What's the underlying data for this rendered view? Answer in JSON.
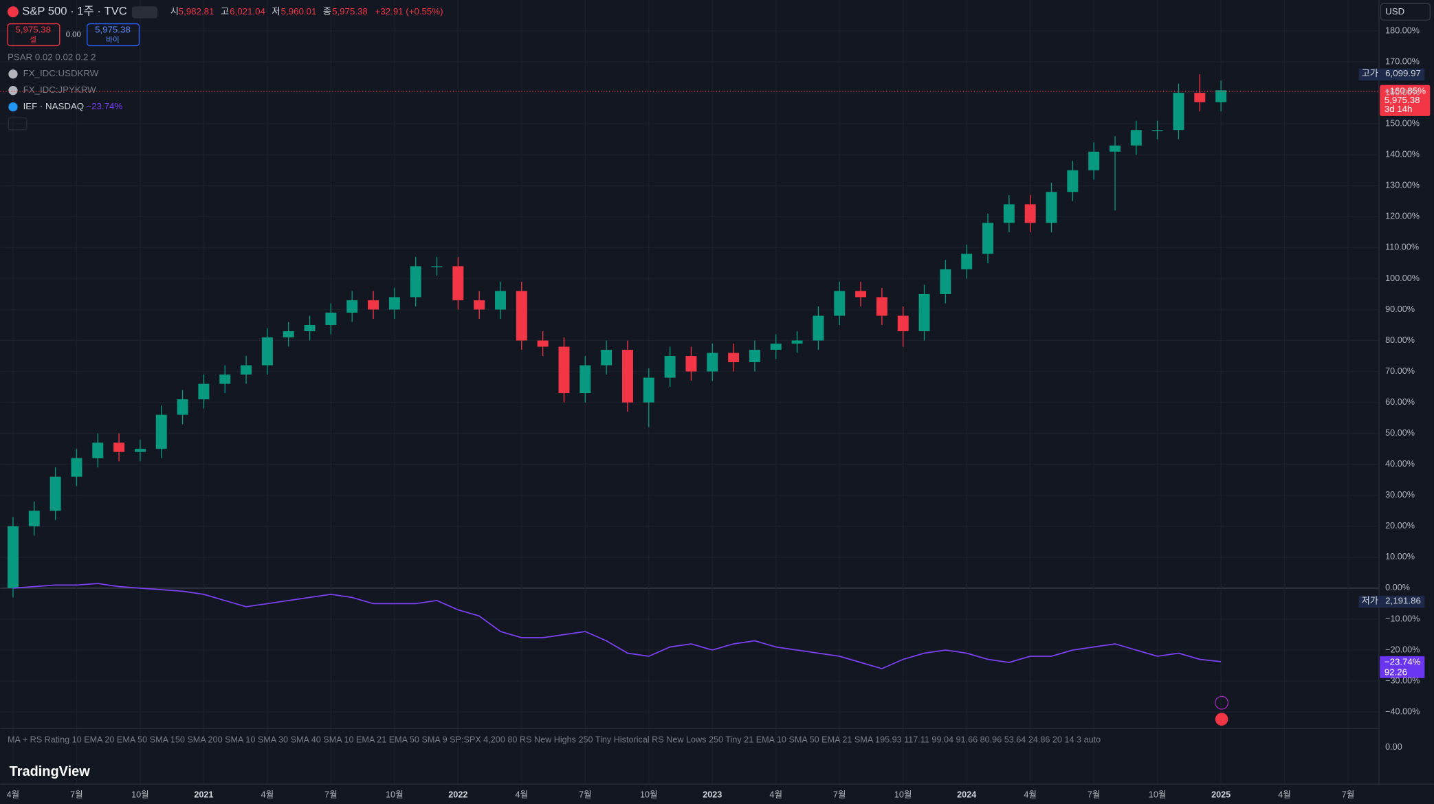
{
  "chart_data": {
    "type": "candlestick",
    "title": "S&P 500 · 1주 · TVC",
    "x": [
      "2020-04",
      "2020-05",
      "2020-06",
      "2020-07",
      "2020-08",
      "2020-09",
      "2020-10",
      "2020-11",
      "2020-12",
      "2021-01",
      "2021-02",
      "2021-03",
      "2021-04",
      "2021-05",
      "2021-06",
      "2021-07",
      "2021-08",
      "2021-09",
      "2021-10",
      "2021-11",
      "2021-12",
      "2022-01",
      "2022-02",
      "2022-03",
      "2022-04",
      "2022-05",
      "2022-06",
      "2022-07",
      "2022-08",
      "2022-09",
      "2022-10",
      "2022-11",
      "2022-12",
      "2023-01",
      "2023-02",
      "2023-03",
      "2023-04",
      "2023-05",
      "2023-06",
      "2023-07",
      "2023-08",
      "2023-09",
      "2023-10",
      "2023-11",
      "2023-12",
      "2024-01",
      "2024-02",
      "2024-03",
      "2024-04",
      "2024-05",
      "2024-06",
      "2024-07",
      "2024-08",
      "2024-09",
      "2024-10",
      "2024-11",
      "2024-12",
      "2025-01"
    ],
    "open": [
      0,
      20,
      25,
      36,
      42,
      47,
      44,
      45,
      56,
      61,
      66,
      69,
      72,
      81,
      83,
      85,
      89,
      93,
      90,
      94,
      104,
      104,
      93,
      90,
      96,
      80,
      78,
      63,
      72,
      77,
      60,
      68,
      75,
      70,
      76,
      73,
      77,
      79,
      80,
      88,
      96,
      94,
      88,
      83,
      95,
      103,
      108,
      118,
      124,
      118,
      128,
      135,
      141,
      143,
      148,
      148,
      160,
      157
    ],
    "high": [
      23,
      28,
      39,
      45,
      50,
      50,
      48,
      59,
      64,
      69,
      72,
      75,
      84,
      86,
      88,
      92,
      96,
      96,
      97,
      107,
      107,
      107,
      96,
      99,
      99,
      83,
      81,
      75,
      80,
      80,
      71,
      78,
      78,
      79,
      79,
      80,
      82,
      83,
      91,
      99,
      99,
      97,
      91,
      98,
      106,
      111,
      121,
      127,
      127,
      131,
      138,
      144,
      146,
      151,
      151,
      163,
      166,
      164
    ],
    "low": [
      -3,
      17,
      22,
      33,
      39,
      41,
      41,
      42,
      53,
      58,
      63,
      66,
      69,
      78,
      80,
      82,
      86,
      87,
      87,
      91,
      101,
      90,
      87,
      87,
      77,
      75,
      60,
      60,
      69,
      57,
      52,
      65,
      67,
      67,
      70,
      70,
      74,
      76,
      77,
      85,
      91,
      85,
      78,
      80,
      92,
      100,
      105,
      115,
      115,
      115,
      125,
      132,
      122,
      140,
      145,
      145,
      154,
      154
    ],
    "close": [
      20,
      25,
      36,
      42,
      47,
      44,
      45,
      56,
      61,
      66,
      69,
      72,
      81,
      83,
      85,
      89,
      93,
      90,
      94,
      104,
      104,
      93,
      90,
      96,
      80,
      78,
      63,
      72,
      77,
      60,
      68,
      75,
      70,
      76,
      73,
      77,
      79,
      80,
      88,
      96,
      94,
      88,
      83,
      95,
      103,
      108,
      118,
      124,
      118,
      128,
      135,
      141,
      143,
      148,
      148,
      160,
      157,
      160.85
    ],
    "up_color": "#089981",
    "down_color": "#f23645",
    "series": [
      {
        "name": "IEF · NASDAQ",
        "color": "#7b42f6",
        "value_label": "−23.74%",
        "values": [
          0,
          0.5,
          1,
          1,
          1.5,
          0.5,
          0,
          -0.5,
          -1,
          -2,
          -4,
          -6,
          -5,
          -4,
          -3,
          -2,
          -3,
          -5,
          -5,
          -5,
          -4,
          -7,
          -9,
          -14,
          -16,
          -16,
          -15,
          -14,
          -17,
          -21,
          -22,
          -19,
          -18,
          -20,
          -18,
          -17,
          -19,
          -20,
          -21,
          -22,
          -24,
          -26,
          -23,
          -21,
          -20,
          -21,
          -23,
          -24,
          -22,
          -22,
          -20,
          -19,
          -18,
          -20,
          -22,
          -21,
          -23,
          -23.74
        ]
      }
    ],
    "ylim": [
      -45,
      190
    ],
    "yticks": [
      {
        "value": 180,
        "label": "180.00%"
      },
      {
        "value": 170,
        "label": "170.00%"
      },
      {
        "value": 160,
        "label": "160.00%"
      },
      {
        "value": 150,
        "label": "150.00%"
      },
      {
        "value": 140,
        "label": "140.00%"
      },
      {
        "value": 130,
        "label": "130.00%"
      },
      {
        "value": 120,
        "label": "120.00%"
      },
      {
        "value": 110,
        "label": "110.00%"
      },
      {
        "value": 100,
        "label": "100.00%"
      },
      {
        "value": 90,
        "label": "90.00%"
      },
      {
        "value": 80,
        "label": "80.00%"
      },
      {
        "value": 70,
        "label": "70.00%"
      },
      {
        "value": 60,
        "label": "60.00%"
      },
      {
        "value": 50,
        "label": "50.00%"
      },
      {
        "value": 40,
        "label": "40.00%"
      },
      {
        "value": 30,
        "label": "30.00%"
      },
      {
        "value": 20,
        "label": "20.00%"
      },
      {
        "value": 10,
        "label": "10.00%"
      },
      {
        "value": 0,
        "label": "0.00%"
      },
      {
        "value": -10,
        "label": "−10.00%"
      },
      {
        "value": -20,
        "label": "−20.00%"
      },
      {
        "value": -30,
        "label": "−30.00%"
      },
      {
        "value": -40,
        "label": "−40.00%"
      }
    ],
    "time_axis_labels": [
      "4월",
      "7월",
      "10월",
      "2021",
      "4월",
      "7월",
      "10월",
      "2022",
      "4월",
      "7월",
      "10월",
      "2023",
      "4월",
      "7월",
      "10월",
      "2024",
      "4월",
      "7월",
      "10월",
      "2025",
      "4월",
      "7월"
    ],
    "grid": true
  },
  "header": {
    "open_label": "시",
    "open": "5,982.81",
    "high_label": "고",
    "high": "6,021.04",
    "low_label": "저",
    "low": "5,960.01",
    "close_label": "종",
    "close": "5,975.38",
    "change": "+32.91 (+0.55%)",
    "sell_price": "5,975.38",
    "sell": "셀",
    "spread": "0.00",
    "buy_price": "5,975.38",
    "buy": "바이",
    "currency": "USD"
  },
  "indicators": [
    "PSAR 0.02 0.02 0.2 2",
    "FX_IDC:USDKRW",
    "FX_IDC:JPYKRW"
  ],
  "price_labels": {
    "high_tag": "고가",
    "high_value": "6,099.97",
    "last_pct": "+160.85%",
    "last_price": "5,975.38",
    "countdown": "3d 14h",
    "low_tag": "저가",
    "low_value": "2,191.86",
    "ief_pct": "−23.74%",
    "ief_price": "92.26"
  },
  "footer": {
    "indicator_text": "MA + RS Rating 10 EMA 20 EMA 50 SMA 150 SMA 200 SMA 10 SMA 30 SMA 40 SMA 10 EMA 21 EMA 50 SMA 9 SP:SPX 4,200 80 RS New Highs 250 Tiny Historical RS New Lows 250 Tiny 21 EMA 10 SMA 50 EMA 21 SMA 195.93 117.11 99.04 91.66 80.96 53.64 24.86 20 14 3 auto",
    "pane_zero": "0.00",
    "brand": "TradingView"
  }
}
